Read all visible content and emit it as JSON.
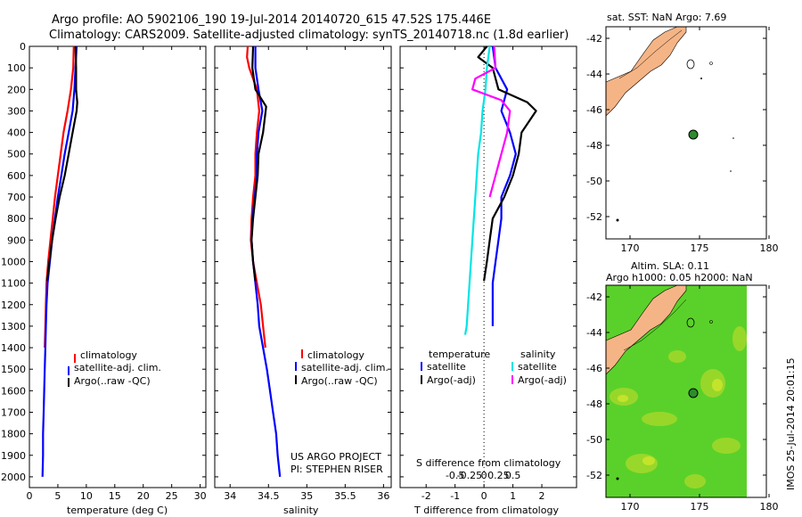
{
  "title": {
    "line1": "Argo profile: AO 5902106_190 19-Jul-2014 20140720_615 47.52S 175.446E",
    "line2": "Climatology: CARS2009. Satellite-adjusted climatology: synTS_20140718.nc (1.8d earlier)"
  },
  "colors": {
    "climatology": "#ff0000",
    "satellite": "#0000ff",
    "argo": "#000000",
    "sal_satellite": "#00e5e5",
    "sal_argo": "#ff00ff",
    "land": "#f5b485",
    "sla_field": "#5ad12a",
    "float": "#2e8b2e"
  },
  "chart_data": [
    {
      "type": "line",
      "xlabel": "temperature (deg C)",
      "xlim": [
        0,
        31
      ],
      "ylim": [
        2050,
        0
      ],
      "x_ticks": [
        "0",
        "5",
        "10",
        "15",
        "20",
        "25",
        "30"
      ],
      "y_ticks": [
        "0",
        "100",
        "200",
        "300",
        "400",
        "500",
        "600",
        "700",
        "800",
        "900",
        "1000",
        "1100",
        "1200",
        "1300",
        "1400",
        "1500",
        "1600",
        "1700",
        "1800",
        "1900",
        "2000"
      ],
      "legend": [
        {
          "label": "climatology"
        },
        {
          "label": "satellite-adj. clim."
        },
        {
          "label": "Argo(..raw -QC)"
        }
      ],
      "series": [
        {
          "name": "climatology",
          "color": "climatology",
          "points": [
            [
              7.8,
              0
            ],
            [
              7.7,
              100
            ],
            [
              7.3,
              200
            ],
            [
              6.7,
              300
            ],
            [
              6.0,
              400
            ],
            [
              5.5,
              500
            ],
            [
              5.0,
              600
            ],
            [
              4.5,
              700
            ],
            [
              4.1,
              800
            ],
            [
              3.7,
              900
            ],
            [
              3.3,
              1000
            ],
            [
              3.0,
              1100
            ],
            [
              2.9,
              1200
            ],
            [
              2.8,
              1300
            ],
            [
              2.7,
              1400
            ]
          ]
        },
        {
          "name": "satellite-adj. clim.",
          "color": "satellite",
          "points": [
            [
              8.3,
              0
            ],
            [
              8.1,
              100
            ],
            [
              7.9,
              200
            ],
            [
              7.6,
              300
            ],
            [
              6.9,
              400
            ],
            [
              6.2,
              500
            ],
            [
              5.6,
              600
            ],
            [
              5.0,
              700
            ],
            [
              4.5,
              800
            ],
            [
              4.0,
              900
            ],
            [
              3.6,
              1000
            ],
            [
              3.2,
              1100
            ],
            [
              3.0,
              1200
            ],
            [
              2.9,
              1300
            ],
            [
              2.8,
              1400
            ],
            [
              2.7,
              1500
            ],
            [
              2.6,
              1600
            ],
            [
              2.5,
              1700
            ],
            [
              2.4,
              1800
            ],
            [
              2.4,
              1900
            ],
            [
              2.3,
              2000
            ]
          ]
        },
        {
          "name": "Argo(..raw -QC)",
          "color": "argo",
          "points": [
            [
              8.1,
              0
            ],
            [
              8.2,
              100
            ],
            [
              8.2,
              200
            ],
            [
              8.4,
              260
            ],
            [
              8.3,
              300
            ],
            [
              7.6,
              400
            ],
            [
              6.9,
              500
            ],
            [
              6.2,
              600
            ],
            [
              5.3,
              700
            ],
            [
              4.6,
              800
            ],
            [
              4.0,
              900
            ],
            [
              3.5,
              1000
            ],
            [
              3.1,
              1090
            ]
          ]
        }
      ]
    },
    {
      "type": "line",
      "xlabel": "salinity",
      "xlim": [
        33.8,
        36.1
      ],
      "ylim": [
        2050,
        0
      ],
      "x_ticks": [
        "34",
        "34.5",
        "35",
        "35.5",
        "36"
      ],
      "legend": [
        {
          "label": "climatology"
        },
        {
          "label": "satellite-adj. clim."
        },
        {
          "label": "Argo(..raw -QC)"
        }
      ],
      "annotations": [
        "US ARGO PROJECT",
        "PI: STEPHEN RISER"
      ],
      "series": [
        {
          "name": "climatology",
          "color": "climatology",
          "points": [
            [
              34.23,
              0
            ],
            [
              34.22,
              50
            ],
            [
              34.25,
              100
            ],
            [
              34.35,
              200
            ],
            [
              34.38,
              300
            ],
            [
              34.35,
              400
            ],
            [
              34.33,
              500
            ],
            [
              34.33,
              600
            ],
            [
              34.3,
              700
            ],
            [
              34.28,
              800
            ],
            [
              34.27,
              900
            ],
            [
              34.3,
              1000
            ],
            [
              34.35,
              1100
            ],
            [
              34.4,
              1200
            ],
            [
              34.43,
              1300
            ],
            [
              34.46,
              1400
            ]
          ]
        },
        {
          "name": "satellite-adj. clim.",
          "color": "satellite",
          "points": [
            [
              34.33,
              0
            ],
            [
              34.33,
              100
            ],
            [
              34.37,
              200
            ],
            [
              34.42,
              300
            ],
            [
              34.37,
              400
            ],
            [
              34.35,
              500
            ],
            [
              34.35,
              600
            ],
            [
              34.32,
              700
            ],
            [
              34.29,
              800
            ],
            [
              34.28,
              900
            ],
            [
              34.3,
              1000
            ],
            [
              34.33,
              1100
            ],
            [
              34.36,
              1200
            ],
            [
              34.38,
              1300
            ],
            [
              34.43,
              1400
            ],
            [
              34.48,
              1500
            ],
            [
              34.52,
              1600
            ],
            [
              34.56,
              1700
            ],
            [
              34.6,
              1800
            ],
            [
              34.62,
              1900
            ],
            [
              34.65,
              2000
            ]
          ]
        },
        {
          "name": "Argo(..raw -QC)",
          "color": "argo",
          "points": [
            [
              34.3,
              0
            ],
            [
              34.29,
              100
            ],
            [
              34.33,
              200
            ],
            [
              34.47,
              280
            ],
            [
              34.43,
              400
            ],
            [
              34.37,
              500
            ],
            [
              34.36,
              600
            ],
            [
              34.33,
              700
            ],
            [
              34.3,
              800
            ],
            [
              34.28,
              900
            ],
            [
              34.3,
              1000
            ],
            [
              34.33,
              1090
            ]
          ]
        }
      ]
    },
    {
      "type": "line",
      "xlabel": "T difference from climatology",
      "xlabel2": "S difference from climatology",
      "xlim": [
        -2.9,
        3.2
      ],
      "ylim": [
        2050,
        0
      ],
      "x_ticks": [
        "-2",
        "-1",
        "0",
        "1",
        "2"
      ],
      "x2_ticks": [
        {
          "v": -1.0,
          "label": "-0.5"
        },
        {
          "v": -0.5,
          "label": "-0.25"
        },
        {
          "v": 0,
          "label": "0"
        },
        {
          "v": 0.5,
          "label": "0.25"
        },
        {
          "v": 1.0,
          "label": "0.5"
        }
      ],
      "legend_titles": [
        "temperature",
        "salinity"
      ],
      "legend": [
        {
          "label": "satellite"
        },
        {
          "label": "Argo(-adj)"
        },
        {
          "label": "satellite"
        },
        {
          "label": "Argo(-adj)"
        }
      ],
      "series": [
        {
          "name": "satellite",
          "color": "satellite",
          "points": [
            [
              0.3,
              0
            ],
            [
              0.4,
              100
            ],
            [
              0.8,
              200
            ],
            [
              0.6,
              300
            ],
            [
              0.9,
              400
            ],
            [
              1.1,
              500
            ],
            [
              0.9,
              600
            ],
            [
              0.6,
              700
            ],
            [
              0.6,
              800
            ],
            [
              0.5,
              900
            ],
            [
              0.4,
              1000
            ],
            [
              0.3,
              1100
            ],
            [
              0.3,
              1300
            ]
          ]
        },
        {
          "name": "Argo(-adj)",
          "color": "argo",
          "points": [
            [
              0.1,
              0
            ],
            [
              -0.2,
              50
            ],
            [
              0.3,
              100
            ],
            [
              0.5,
              200
            ],
            [
              1.5,
              260
            ],
            [
              1.8,
              300
            ],
            [
              1.3,
              400
            ],
            [
              1.2,
              500
            ],
            [
              1.0,
              600
            ],
            [
              0.7,
              700
            ],
            [
              0.3,
              800
            ],
            [
              0.2,
              900
            ],
            [
              0.1,
              1000
            ],
            [
              0.0,
              1090
            ]
          ]
        },
        {
          "name": "satellite",
          "color": "sal_satellite",
          "points": [
            [
              0.2,
              0
            ],
            [
              0.1,
              100
            ],
            [
              0.05,
              200
            ],
            [
              -0.05,
              300
            ],
            [
              -0.1,
              400
            ],
            [
              -0.2,
              500
            ],
            [
              -0.3,
              700
            ],
            [
              -0.4,
              900
            ],
            [
              -0.5,
              1100
            ],
            [
              -0.6,
              1300
            ],
            [
              -0.65,
              1340
            ]
          ]
        },
        {
          "name": "Argo(-adj)",
          "color": "sal_argo",
          "points": [
            [
              0.35,
              0
            ],
            [
              0.4,
              100
            ],
            [
              -0.3,
              150
            ],
            [
              -0.4,
              200
            ],
            [
              0.6,
              250
            ],
            [
              0.9,
              300
            ],
            [
              0.8,
              400
            ],
            [
              0.6,
              500
            ],
            [
              0.4,
              600
            ],
            [
              0.2,
              700
            ]
          ]
        }
      ]
    }
  ],
  "maps": {
    "sst": {
      "title": "sat. SST: NaN Argo: 7.69",
      "lat_ticks": [
        "-42",
        "-44",
        "-46",
        "-48",
        "-50",
        "-52"
      ],
      "lon_ticks": [
        "170",
        "175",
        "180"
      ]
    },
    "sla": {
      "title_line1": "Altim. SLA: 0.11",
      "title_line2": "Argo h1000: 0.05 h2000: NaN",
      "lat_ticks": [
        "-42",
        "-44",
        "-46",
        "-48",
        "-50",
        "-52"
      ],
      "lon_ticks": [
        "170",
        "175",
        "180"
      ]
    }
  },
  "footer": {
    "stamp": "IMOS 25-Jul-2014 20:01:15"
  }
}
